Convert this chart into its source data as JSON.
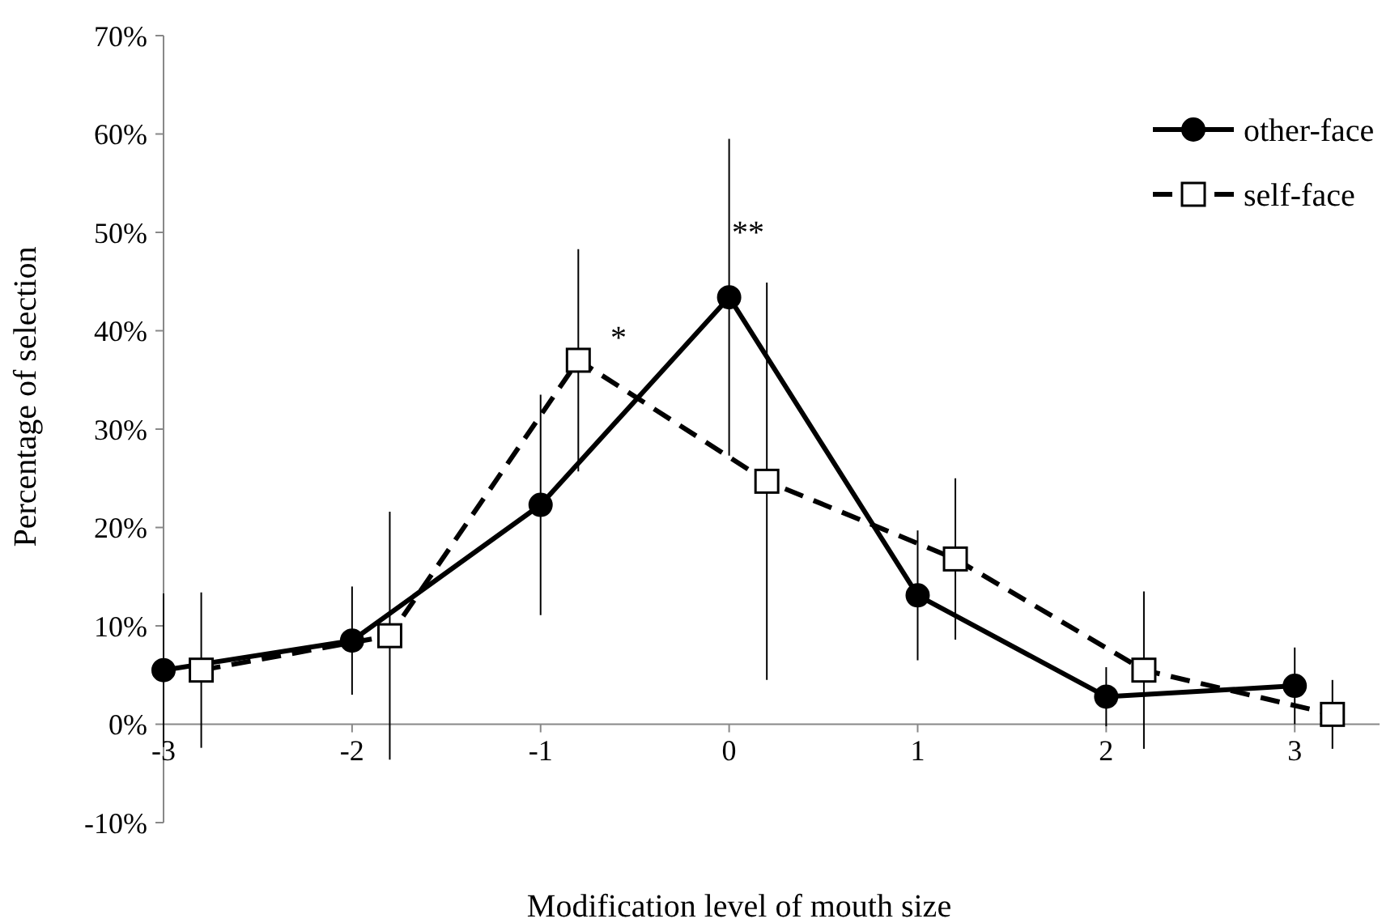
{
  "chart_data": {
    "type": "line",
    "xlabel": "Modification level of mouth size",
    "ylabel": "Percentage of selection",
    "xlim": [
      -3,
      3.45
    ],
    "xticks": [
      -3,
      -2,
      -1,
      0,
      1,
      2,
      3
    ],
    "ylim": [
      -10,
      70
    ],
    "yticks": [
      {
        "value": -10,
        "label": "-10%"
      },
      {
        "value": 0,
        "label": "0%"
      },
      {
        "value": 10,
        "label": "10%"
      },
      {
        "value": 20,
        "label": "20%"
      },
      {
        "value": 30,
        "label": "30%"
      },
      {
        "value": 40,
        "label": "40%"
      },
      {
        "value": 50,
        "label": "50%"
      },
      {
        "value": 60,
        "label": "60%"
      },
      {
        "value": 70,
        "label": "70%"
      }
    ],
    "grid": false,
    "legend": "top right",
    "series": [
      {
        "name": "other-face",
        "color": "#000000",
        "marker": "circle",
        "line_style": "solid",
        "x": [
          -3,
          -2,
          -1,
          0,
          1,
          2,
          3
        ],
        "values": [
          5.5,
          8.5,
          22.3,
          43.4,
          13.1,
          2.8,
          3.9
        ],
        "errors": [
          7.8,
          5.5,
          11.2,
          16.1,
          6.6,
          3,
          3.9
        ]
      },
      {
        "name": "self-face",
        "color": "#000000",
        "marker": "square",
        "line_style": "dashed",
        "x": [
          -2.8,
          -1.8,
          -0.8,
          0.2,
          1.2,
          2.2,
          3.2
        ],
        "values": [
          5.5,
          9,
          37,
          24.7,
          16.8,
          5.5,
          1
        ],
        "errors": [
          7.9,
          12.6,
          11.3,
          20.2,
          8.2,
          8,
          3.5
        ]
      }
    ],
    "annotations": [
      "*",
      "**"
    ]
  }
}
